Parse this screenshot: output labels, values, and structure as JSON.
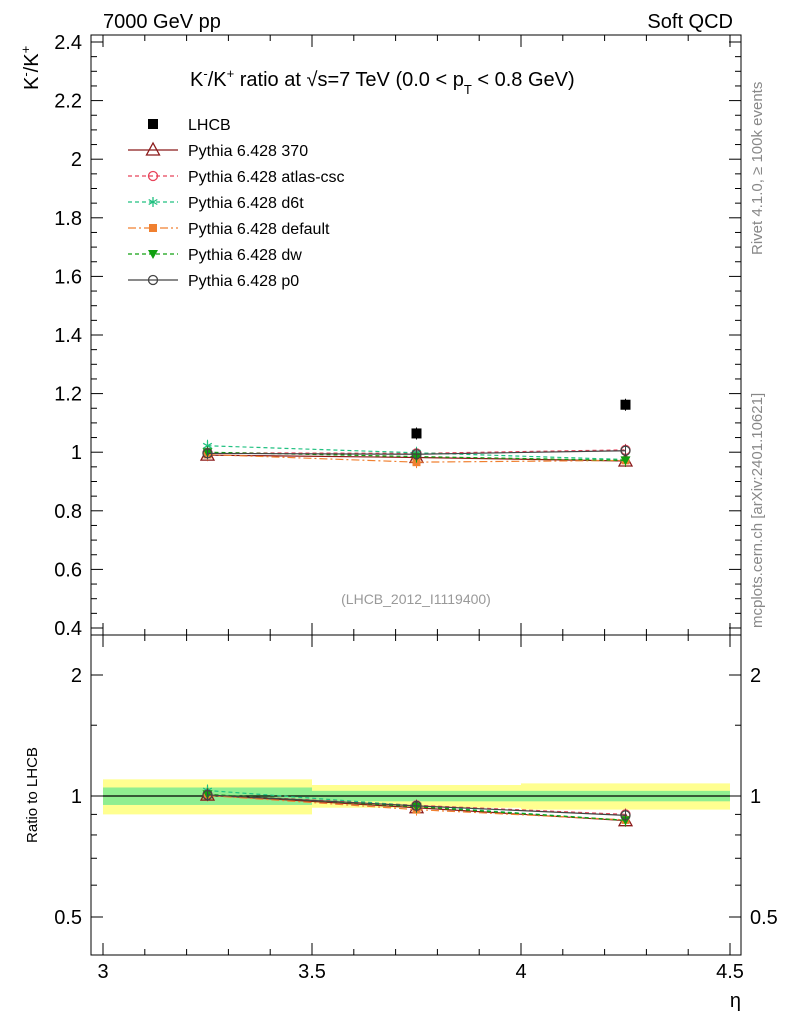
{
  "header": {
    "left": "7000 GeV pp",
    "right": "Soft QCD"
  },
  "side_labels": {
    "rivet": "Rivet 4.1.0, ≥ 100k events",
    "mcplots": "mcplots.cern.ch [arXiv:2401.10621]"
  },
  "chart_data": [
    {
      "type": "scatter",
      "panel": "main",
      "title": "K⁻/K⁺ ratio at √s=7 TeV (0.0 < pT < 0.8 GeV)",
      "title_parts": {
        "prefix": "K",
        "sup1": "-",
        "mid": "/K",
        "sup2": "+",
        "text1": " ratio at ",
        "sqrt": "√",
        "text2": "s=7 TeV (0.0 < p",
        "sub": "T",
        "text3": " < 0.8 GeV)"
      },
      "ylabel": "K⁻/K⁺",
      "ylabel_parts": {
        "a": "K",
        "sa": "-",
        "b": "/K",
        "sb": "+"
      },
      "xlabel": "",
      "xlim": [
        3.0,
        4.5
      ],
      "ylim": [
        0.4,
        2.45
      ],
      "yticks": [
        0.4,
        0.6,
        0.8,
        1.0,
        1.2,
        1.4,
        1.6,
        1.8,
        2.0,
        2.2,
        2.4
      ],
      "ytick_labels": [
        "0.4",
        "0.6",
        "0.8",
        "1",
        "1.2",
        "1.4",
        "1.6",
        "1.8",
        "2",
        "2.2",
        "2.4"
      ],
      "analysis_label": "(LHCB_2012_I1119400)",
      "x": [
        3.25,
        3.75,
        4.25
      ],
      "series": [
        {
          "name": "LHCB",
          "color": "#000000",
          "marker": "filled-square",
          "line": "none",
          "values": [
            null,
            1.064,
            1.162
          ]
        },
        {
          "name": "Pythia 6.428 370",
          "color": "#8b1a1a",
          "marker": "open-triangle",
          "line": "solid",
          "values": [
            0.99,
            0.982,
            0.97
          ]
        },
        {
          "name": "Pythia 6.428 atlas-csc",
          "color": "#e8435a",
          "marker": "open-circle",
          "line": "dashed",
          "values": [
            0.998,
            0.996,
            1.008
          ]
        },
        {
          "name": "Pythia 6.428 d6t",
          "color": "#20c080",
          "marker": "asterisk",
          "line": "dashed",
          "values": [
            1.022,
            0.998,
            0.975
          ]
        },
        {
          "name": "Pythia 6.428 default",
          "color": "#f08030",
          "marker": "filled-square-small",
          "line": "dashdot",
          "values": [
            0.992,
            0.966,
            0.972
          ]
        },
        {
          "name": "Pythia 6.428 dw",
          "color": "#10a010",
          "marker": "filled-triangle-down",
          "line": "dashed",
          "values": [
            1.0,
            0.985,
            0.972
          ]
        },
        {
          "name": "Pythia 6.428 p0",
          "color": "#444444",
          "marker": "open-circle",
          "line": "solid",
          "values": [
            0.996,
            0.993,
            1.005
          ]
        }
      ]
    },
    {
      "type": "scatter",
      "panel": "ratio",
      "ylabel": "Ratio to LHCB",
      "xlabel": "η",
      "xlim": [
        3.0,
        4.5
      ],
      "ylim": [
        0.4,
        2.45
      ],
      "yscale": "log",
      "ytick_labels": [
        "2",
        "1",
        "0.5",
        "2",
        "1",
        "0.5"
      ],
      "yticks": [
        2,
        1,
        0.5
      ],
      "xticks": [
        3.0,
        3.5,
        4.0,
        4.5
      ],
      "xtick_labels": [
        "3",
        "3.5",
        "4",
        "4.5"
      ],
      "bands": {
        "bins": [
          [
            3.0,
            3.5
          ],
          [
            3.5,
            4.0
          ],
          [
            4.0,
            4.5
          ]
        ],
        "stat": [
          [
            0.95,
            1.05
          ],
          [
            0.97,
            1.03
          ],
          [
            0.97,
            1.03
          ]
        ],
        "total": [
          [
            0.9,
            1.1
          ],
          [
            0.935,
            1.065
          ],
          [
            0.925,
            1.075
          ]
        ],
        "stat_color": "#90ee90",
        "total_color": "#ffff90"
      },
      "x": [
        3.25,
        3.75,
        4.25
      ],
      "series": [
        {
          "name": "Pythia 6.428 370",
          "color": "#8b1a1a",
          "marker": "open-triangle",
          "line": "solid",
          "values": [
            1.005,
            0.935,
            0.868
          ]
        },
        {
          "name": "Pythia 6.428 atlas-csc",
          "color": "#e8435a",
          "marker": "open-circle",
          "line": "dashed",
          "values": [
            1.008,
            0.948,
            0.9
          ]
        },
        {
          "name": "Pythia 6.428 d6t",
          "color": "#20c080",
          "marker": "asterisk",
          "line": "dashed",
          "values": [
            1.032,
            0.945,
            0.87
          ]
        },
        {
          "name": "Pythia 6.428 default",
          "color": "#f08030",
          "marker": "filled-square-small",
          "line": "dashdot",
          "values": [
            1.003,
            0.925,
            0.872
          ]
        },
        {
          "name": "Pythia 6.428 dw",
          "color": "#10a010",
          "marker": "filled-triangle-down",
          "line": "dashed",
          "values": [
            1.01,
            0.94,
            0.87
          ]
        },
        {
          "name": "Pythia 6.428 p0",
          "color": "#444444",
          "marker": "open-circle",
          "line": "solid",
          "values": [
            1.006,
            0.945,
            0.895
          ]
        }
      ]
    }
  ]
}
